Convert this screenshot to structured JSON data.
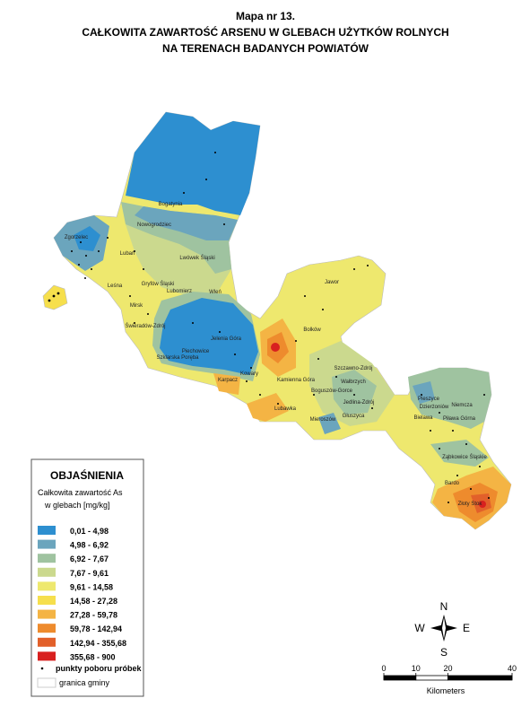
{
  "title": {
    "line1": "Mapa nr 13.",
    "line2": "CAŁKOWITA  ZAWARTOŚĆ  ARSENU  W  GLEBACH UŻYTKÓW  ROLNYCH",
    "line3": "NA  TERENACH  BADANYCH  POWIATÓW"
  },
  "places": [
    "Bogatynia",
    "Nowogrodziec",
    "Zgorzelec",
    "Lubań",
    "Lwówek Śląski",
    "Leśna",
    "Gryfów Śląski",
    "Lubomierz",
    "Wleń",
    "Mirsk",
    "Świeradów-Zdrój",
    "Jelenia Góra",
    "Piechowice",
    "Szklarska Poręba",
    "Karpacz",
    "Kowary",
    "Jawor",
    "Bolków",
    "Kamienna Góra",
    "Szczawno-Zdrój",
    "Wałbrzych",
    "Boguszów-Gorce",
    "Jedlina-Zdrój",
    "Lubawka",
    "Mieroszów",
    "Głuszyca",
    "Pieszyce",
    "Dzierżoniów",
    "Niemcza",
    "Bielawa",
    "Piława Górna",
    "Ząbkowice Śląskie",
    "Bardo",
    "Złoty Stok"
  ],
  "legend": {
    "title": "OBJAŚNIENIA",
    "subtitle1": "Całkowita zawartość As",
    "subtitle2": "w glebach [mg/kg]",
    "classes": [
      {
        "label": "0,01 - 4,98",
        "color": "#2d8fd0"
      },
      {
        "label": "4,98 - 6,92",
        "color": "#6ba5bd"
      },
      {
        "label": "6,92 - 7,67",
        "color": "#9fc3a0"
      },
      {
        "label": "7,67 - 9,61",
        "color": "#cbd98e"
      },
      {
        "label": "9,61 - 14,58",
        "color": "#eee86e"
      },
      {
        "label": "14,58 - 27,28",
        "color": "#f6df4c"
      },
      {
        "label": "27,28 - 59,78",
        "color": "#f4b444"
      },
      {
        "label": "59,78 - 142,94",
        "color": "#ee8b2d"
      },
      {
        "label": "142,94 - 355,68",
        "color": "#e2602a"
      },
      {
        "label": "355,68 - 900",
        "color": "#d8201f"
      }
    ],
    "points": "punkty poboru próbek",
    "boundary": "granica gminy"
  },
  "compass": {
    "n": "N",
    "e": "E",
    "s": "S",
    "w": "W"
  },
  "scale_bar": {
    "ticks": [
      0,
      10,
      20,
      40
    ],
    "unit": "Kilometers"
  }
}
